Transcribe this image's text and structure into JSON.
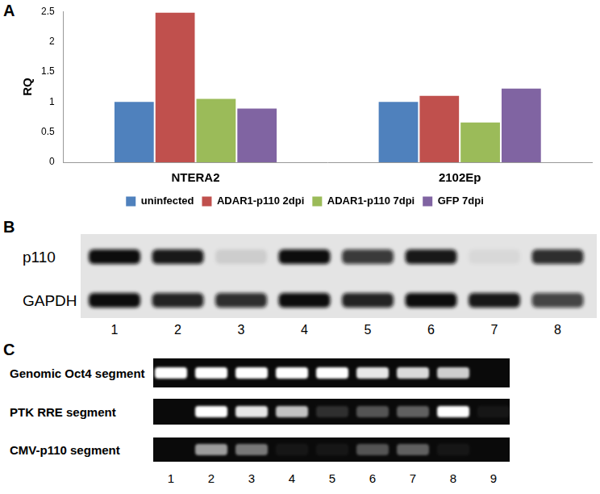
{
  "panel_labels": [
    "A",
    "B",
    "C"
  ],
  "chart_data": {
    "type": "bar",
    "y_label": "RQ",
    "categories": [
      "NTERA2",
      "2102Ep"
    ],
    "series": [
      {
        "name": "uninfected",
        "color": "#4f81bd",
        "values": [
          1.0,
          1.0
        ]
      },
      {
        "name": "ADAR1-p110 2dpi",
        "color": "#c0504d",
        "values": [
          2.48,
          1.1
        ]
      },
      {
        "name": "ADAR1-p110 7dpi",
        "color": "#9bbb59",
        "values": [
          1.05,
          0.66
        ]
      },
      {
        "name": "GFP 7dpi",
        "color": "#8064a2",
        "values": [
          0.89,
          1.22
        ]
      }
    ],
    "ylim": [
      0,
      2.5
    ],
    "yticks": [
      0,
      0.5,
      1,
      1.5,
      2,
      2.5
    ],
    "grid": false,
    "legend": "bottom"
  },
  "western_blot": {
    "lanes": [
      1,
      2,
      3,
      4,
      5,
      6,
      7,
      8
    ],
    "rows": [
      {
        "label": "p110",
        "intensity": [
          1.0,
          0.95,
          0.1,
          1.0,
          0.8,
          0.95,
          0.05,
          0.85
        ]
      },
      {
        "label": "GAPDH",
        "intensity": [
          1.0,
          0.9,
          0.85,
          1.0,
          0.9,
          1.0,
          0.95,
          0.75
        ]
      }
    ]
  },
  "gel": {
    "lanes": [
      1,
      2,
      3,
      4,
      5,
      6,
      7,
      8,
      9
    ],
    "rows": [
      {
        "label": "Genomic Oct4 segment",
        "intensity": [
          1.0,
          1.0,
          1.0,
          1.0,
          1.0,
          0.9,
          0.85,
          0.8,
          0.0
        ]
      },
      {
        "label": "PTK RRE segment",
        "intensity": [
          0.0,
          1.0,
          0.9,
          0.75,
          0.15,
          0.3,
          0.35,
          1.0,
          0.05
        ]
      },
      {
        "label": "CMV-p110 segment",
        "intensity": [
          0.0,
          0.6,
          0.45,
          0.05,
          0.05,
          0.3,
          0.35,
          0.05,
          0.0
        ]
      }
    ]
  }
}
